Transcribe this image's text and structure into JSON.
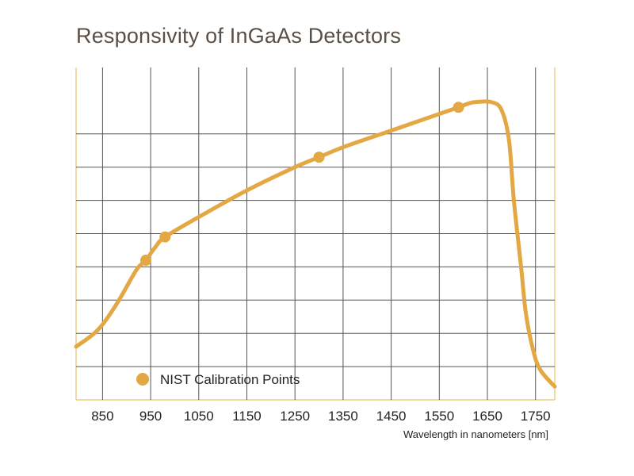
{
  "chart_data": {
    "type": "line",
    "title": "Responsivity of InGaAs Detectors",
    "xlabel": "Wavelength in nanometers [nm]",
    "ylabel": "",
    "xlim": [
      795,
      1790
    ],
    "ylim": [
      0,
      10
    ],
    "grid": true,
    "x_ticks": [
      850,
      950,
      1050,
      1150,
      1250,
      1350,
      1450,
      1550,
      1650,
      1750
    ],
    "y_gridlines": [
      1,
      2,
      3,
      4,
      5,
      6,
      7,
      8
    ],
    "colors": {
      "line": "#e3a843",
      "grid": "#555555",
      "frame": "#e8c468",
      "marker": "#e3a843"
    },
    "series": [
      {
        "x": [
          795,
          840,
          880,
          920,
          940,
          960,
          980,
          1050,
          1150,
          1250,
          1300,
          1350,
          1450,
          1550,
          1590,
          1620,
          1660,
          1680,
          1695,
          1705,
          1720,
          1730,
          1745,
          1760,
          1790
        ],
        "y": [
          1.6,
          2.1,
          2.9,
          3.9,
          4.2,
          4.6,
          4.9,
          5.5,
          6.3,
          7.0,
          7.3,
          7.6,
          8.1,
          8.6,
          8.8,
          8.95,
          8.95,
          8.7,
          7.8,
          6.0,
          4.0,
          2.6,
          1.5,
          0.9,
          0.4
        ]
      }
    ],
    "calibration_points": {
      "legend_label": "NIST Calibration Points",
      "x": [
        940,
        980,
        1300,
        1590
      ],
      "y": [
        4.2,
        4.9,
        7.3,
        8.8
      ]
    }
  }
}
